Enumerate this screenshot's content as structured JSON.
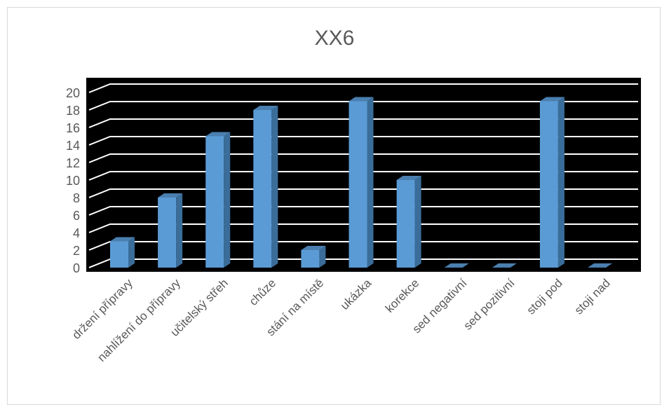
{
  "chart_data": {
    "type": "bar",
    "title": "XX6",
    "categories": [
      "držení přípravy",
      "nahlížení do přípravy",
      "učitelský střeh",
      "chůze",
      "stání na místě",
      "ukázka",
      "korekce",
      "sed negativní",
      "sed pozitivní",
      "stoji pod",
      "stoji nad"
    ],
    "values": [
      3,
      8,
      15,
      18,
      2,
      19,
      10,
      0,
      0,
      19,
      0
    ],
    "yticks": [
      "0",
      "2",
      "4",
      "6",
      "8",
      "10",
      "12",
      "14",
      "16",
      "18",
      "20"
    ],
    "ylim": [
      0,
      20
    ],
    "grid": true,
    "legend": "none",
    "colors": {
      "bar_front": "#5b9bd5",
      "bar_side": "#3a6d99",
      "bar_top": "#4a7fb0",
      "plot_bg": "#000000",
      "grid": "#ffffff"
    }
  }
}
